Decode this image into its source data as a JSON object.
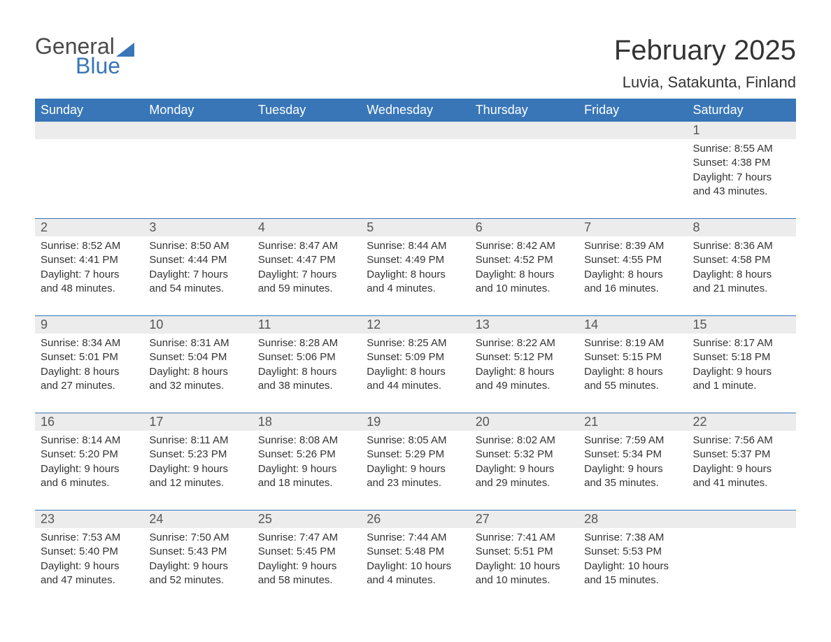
{
  "logo": {
    "word1": "General",
    "word2": "Blue",
    "shape_color": "#3876b8",
    "text_gray": "#4a4a4a"
  },
  "title": "February 2025",
  "location": "Luvia, Satakunta, Finland",
  "colors": {
    "header_bg": "#3876b8",
    "header_text": "#ffffff",
    "daynum_bg": "#ececec",
    "daynum_text": "#555555",
    "body_text": "#333333",
    "rule": "#3876b8",
    "page_bg": "#ffffff"
  },
  "fonts": {
    "title_size": 40,
    "location_size": 22,
    "header_size": 18,
    "daynum_size": 18,
    "detail_size": 15
  },
  "day_names": [
    "Sunday",
    "Monday",
    "Tuesday",
    "Wednesday",
    "Thursday",
    "Friday",
    "Saturday"
  ],
  "weeks": [
    [
      null,
      null,
      null,
      null,
      null,
      null,
      {
        "n": "1",
        "sr": "Sunrise: 8:55 AM",
        "ss": "Sunset: 4:38 PM",
        "d1": "Daylight: 7 hours",
        "d2": "and 43 minutes."
      }
    ],
    [
      {
        "n": "2",
        "sr": "Sunrise: 8:52 AM",
        "ss": "Sunset: 4:41 PM",
        "d1": "Daylight: 7 hours",
        "d2": "and 48 minutes."
      },
      {
        "n": "3",
        "sr": "Sunrise: 8:50 AM",
        "ss": "Sunset: 4:44 PM",
        "d1": "Daylight: 7 hours",
        "d2": "and 54 minutes."
      },
      {
        "n": "4",
        "sr": "Sunrise: 8:47 AM",
        "ss": "Sunset: 4:47 PM",
        "d1": "Daylight: 7 hours",
        "d2": "and 59 minutes."
      },
      {
        "n": "5",
        "sr": "Sunrise: 8:44 AM",
        "ss": "Sunset: 4:49 PM",
        "d1": "Daylight: 8 hours",
        "d2": "and 4 minutes."
      },
      {
        "n": "6",
        "sr": "Sunrise: 8:42 AM",
        "ss": "Sunset: 4:52 PM",
        "d1": "Daylight: 8 hours",
        "d2": "and 10 minutes."
      },
      {
        "n": "7",
        "sr": "Sunrise: 8:39 AM",
        "ss": "Sunset: 4:55 PM",
        "d1": "Daylight: 8 hours",
        "d2": "and 16 minutes."
      },
      {
        "n": "8",
        "sr": "Sunrise: 8:36 AM",
        "ss": "Sunset: 4:58 PM",
        "d1": "Daylight: 8 hours",
        "d2": "and 21 minutes."
      }
    ],
    [
      {
        "n": "9",
        "sr": "Sunrise: 8:34 AM",
        "ss": "Sunset: 5:01 PM",
        "d1": "Daylight: 8 hours",
        "d2": "and 27 minutes."
      },
      {
        "n": "10",
        "sr": "Sunrise: 8:31 AM",
        "ss": "Sunset: 5:04 PM",
        "d1": "Daylight: 8 hours",
        "d2": "and 32 minutes."
      },
      {
        "n": "11",
        "sr": "Sunrise: 8:28 AM",
        "ss": "Sunset: 5:06 PM",
        "d1": "Daylight: 8 hours",
        "d2": "and 38 minutes."
      },
      {
        "n": "12",
        "sr": "Sunrise: 8:25 AM",
        "ss": "Sunset: 5:09 PM",
        "d1": "Daylight: 8 hours",
        "d2": "and 44 minutes."
      },
      {
        "n": "13",
        "sr": "Sunrise: 8:22 AM",
        "ss": "Sunset: 5:12 PM",
        "d1": "Daylight: 8 hours",
        "d2": "and 49 minutes."
      },
      {
        "n": "14",
        "sr": "Sunrise: 8:19 AM",
        "ss": "Sunset: 5:15 PM",
        "d1": "Daylight: 8 hours",
        "d2": "and 55 minutes."
      },
      {
        "n": "15",
        "sr": "Sunrise: 8:17 AM",
        "ss": "Sunset: 5:18 PM",
        "d1": "Daylight: 9 hours",
        "d2": "and 1 minute."
      }
    ],
    [
      {
        "n": "16",
        "sr": "Sunrise: 8:14 AM",
        "ss": "Sunset: 5:20 PM",
        "d1": "Daylight: 9 hours",
        "d2": "and 6 minutes."
      },
      {
        "n": "17",
        "sr": "Sunrise: 8:11 AM",
        "ss": "Sunset: 5:23 PM",
        "d1": "Daylight: 9 hours",
        "d2": "and 12 minutes."
      },
      {
        "n": "18",
        "sr": "Sunrise: 8:08 AM",
        "ss": "Sunset: 5:26 PM",
        "d1": "Daylight: 9 hours",
        "d2": "and 18 minutes."
      },
      {
        "n": "19",
        "sr": "Sunrise: 8:05 AM",
        "ss": "Sunset: 5:29 PM",
        "d1": "Daylight: 9 hours",
        "d2": "and 23 minutes."
      },
      {
        "n": "20",
        "sr": "Sunrise: 8:02 AM",
        "ss": "Sunset: 5:32 PM",
        "d1": "Daylight: 9 hours",
        "d2": "and 29 minutes."
      },
      {
        "n": "21",
        "sr": "Sunrise: 7:59 AM",
        "ss": "Sunset: 5:34 PM",
        "d1": "Daylight: 9 hours",
        "d2": "and 35 minutes."
      },
      {
        "n": "22",
        "sr": "Sunrise: 7:56 AM",
        "ss": "Sunset: 5:37 PM",
        "d1": "Daylight: 9 hours",
        "d2": "and 41 minutes."
      }
    ],
    [
      {
        "n": "23",
        "sr": "Sunrise: 7:53 AM",
        "ss": "Sunset: 5:40 PM",
        "d1": "Daylight: 9 hours",
        "d2": "and 47 minutes."
      },
      {
        "n": "24",
        "sr": "Sunrise: 7:50 AM",
        "ss": "Sunset: 5:43 PM",
        "d1": "Daylight: 9 hours",
        "d2": "and 52 minutes."
      },
      {
        "n": "25",
        "sr": "Sunrise: 7:47 AM",
        "ss": "Sunset: 5:45 PM",
        "d1": "Daylight: 9 hours",
        "d2": "and 58 minutes."
      },
      {
        "n": "26",
        "sr": "Sunrise: 7:44 AM",
        "ss": "Sunset: 5:48 PM",
        "d1": "Daylight: 10 hours",
        "d2": "and 4 minutes."
      },
      {
        "n": "27",
        "sr": "Sunrise: 7:41 AM",
        "ss": "Sunset: 5:51 PM",
        "d1": "Daylight: 10 hours",
        "d2": "and 10 minutes."
      },
      {
        "n": "28",
        "sr": "Sunrise: 7:38 AM",
        "ss": "Sunset: 5:53 PM",
        "d1": "Daylight: 10 hours",
        "d2": "and 15 minutes."
      },
      null
    ]
  ]
}
